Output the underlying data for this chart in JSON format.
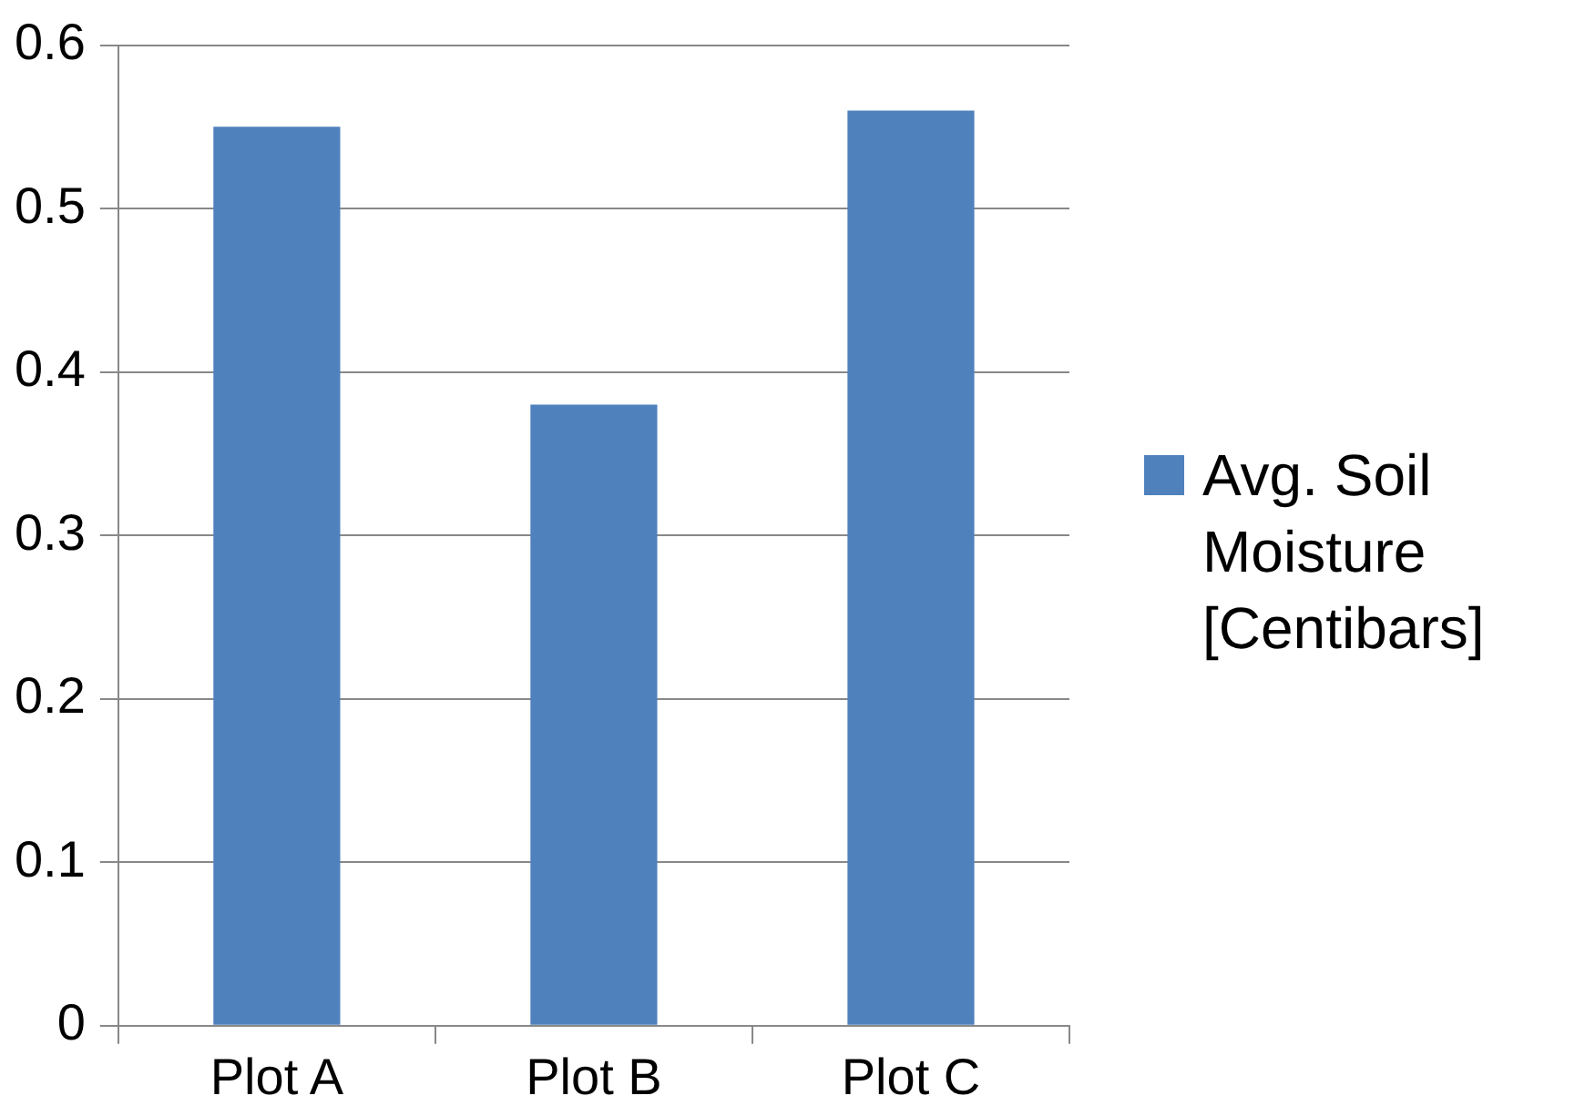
{
  "chart_data": {
    "type": "bar",
    "categories": [
      "Plot A",
      "Plot B",
      "Plot C"
    ],
    "series": [
      {
        "name": "Avg. Soil Moisture [Centibars]",
        "color": "#4f81bd",
        "values": [
          0.55,
          0.38,
          0.56
        ]
      }
    ],
    "ylim": [
      0,
      0.6
    ],
    "yticks": [
      0,
      0.1,
      0.2,
      0.3,
      0.4,
      0.5,
      0.6
    ],
    "grid": "y",
    "legend": "right"
  }
}
